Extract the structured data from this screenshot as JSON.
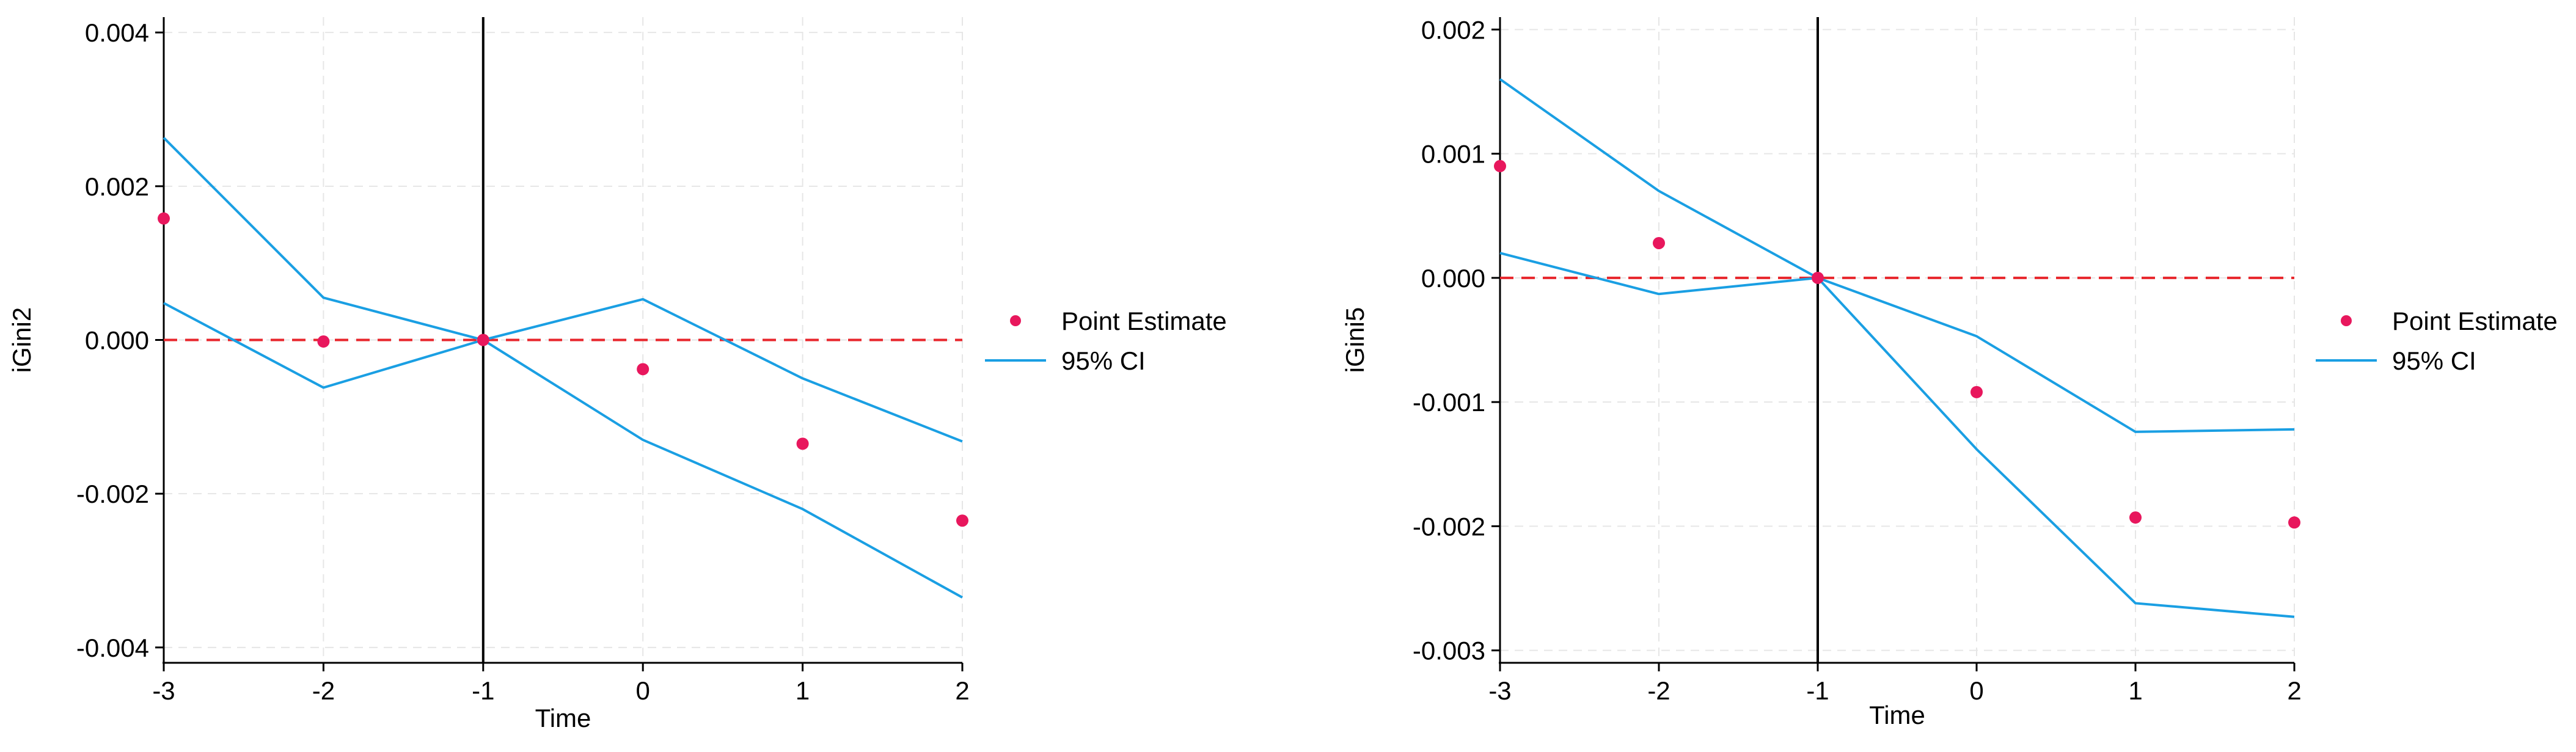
{
  "colors": {
    "point": "#e8175d",
    "ci": "#1a9fe3",
    "zero_line": "#e8262c",
    "event_line": "#000000",
    "grid": "#e6e6e6",
    "axis": "#000000"
  },
  "chart_data": [
    {
      "type": "scatter",
      "title": "",
      "xlabel": "Time",
      "ylabel": "iGini2",
      "x": [
        -3,
        -2,
        -1,
        0,
        1,
        2
      ],
      "xlim": [
        -3,
        2
      ],
      "ylim": [
        -0.0042,
        0.0042
      ],
      "xticks": [
        -3,
        -2,
        -1,
        0,
        1,
        2
      ],
      "xtick_labels": [
        "-3",
        "-2",
        "-1",
        "0",
        "1",
        "2"
      ],
      "yticks": [
        0.004,
        0.002,
        0.0,
        -0.002,
        -0.004
      ],
      "ytick_labels": [
        "0.004",
        "0.002",
        "0.000",
        "-0.002",
        "-0.004"
      ],
      "reference_lines": {
        "y": 0,
        "x": -1
      },
      "grid": true,
      "legend_position": "right",
      "series": [
        {
          "name": "Point Estimate",
          "kind": "points",
          "values": [
            0.00158,
            -2e-05,
            0.0,
            -0.00038,
            -0.00135,
            -0.00235
          ]
        },
        {
          "name": "95% CI",
          "kind": "line",
          "values": [
            0.00263,
            0.00055,
            0.0,
            0.00053,
            -0.0005,
            -0.00132
          ]
        },
        {
          "name": "95% CI (lower)",
          "kind": "line",
          "values": [
            0.00048,
            -0.00062,
            0.0,
            -0.0013,
            -0.0022,
            -0.00335
          ]
        }
      ],
      "legend": [
        "Point Estimate",
        "95% CI"
      ]
    },
    {
      "type": "scatter",
      "title": "",
      "xlabel": "Time",
      "ylabel": "iGini5",
      "x": [
        -3,
        -2,
        -1,
        0,
        1,
        2
      ],
      "xlim": [
        -3,
        2
      ],
      "ylim": [
        -0.0031,
        0.0021
      ],
      "xticks": [
        -3,
        -2,
        -1,
        0,
        1,
        2
      ],
      "xtick_labels": [
        "-3",
        "-2",
        "-1",
        "0",
        "1",
        "2"
      ],
      "yticks": [
        0.002,
        0.001,
        0.0,
        -0.001,
        -0.002,
        -0.003
      ],
      "ytick_labels": [
        "0.002",
        "0.001",
        "0.000",
        "-0.001",
        "-0.002",
        "-0.003"
      ],
      "reference_lines": {
        "y": 0,
        "x": -1
      },
      "grid": true,
      "legend_position": "right",
      "series": [
        {
          "name": "Point Estimate",
          "kind": "points",
          "values": [
            0.0009,
            0.00028,
            0.0,
            -0.00092,
            -0.00193,
            -0.00197
          ]
        },
        {
          "name": "95% CI",
          "kind": "line",
          "values": [
            0.0016,
            0.0007,
            0.0,
            -0.00047,
            -0.00124,
            -0.00122
          ]
        },
        {
          "name": "95% CI (lower)",
          "kind": "line",
          "values": [
            0.0002,
            -0.00013,
            0.0,
            -0.00138,
            -0.00262,
            -0.00273
          ]
        }
      ],
      "legend": [
        "Point Estimate",
        "95% CI"
      ]
    }
  ]
}
